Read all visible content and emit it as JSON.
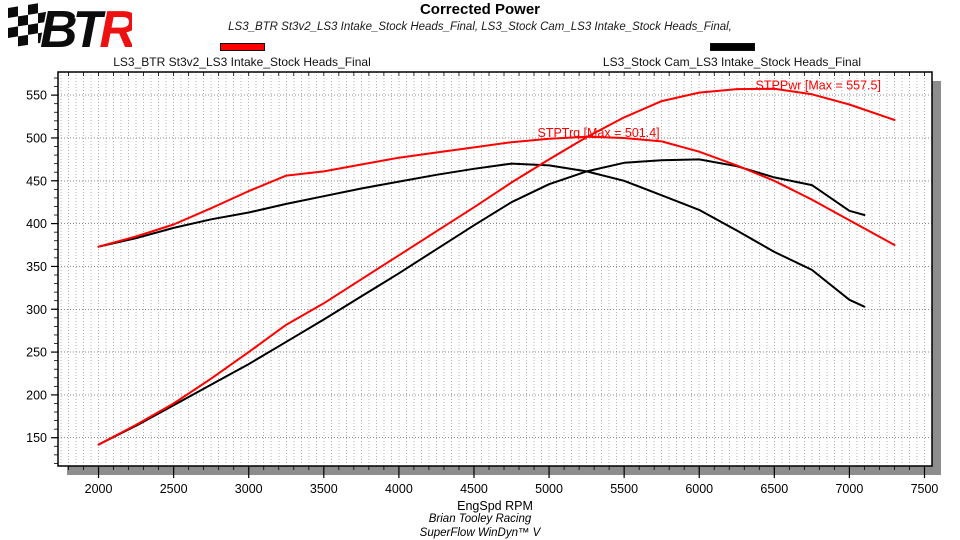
{
  "logo": {
    "letters": [
      "B",
      "T",
      "R"
    ],
    "accent_color": "#ee1111"
  },
  "header": {
    "title": "Corrected Power",
    "subtitle": "LS3_BTR St3v2_LS3 Intake_Stock Heads_Final, LS3_Stock Cam_LS3 Intake_Stock Heads_Final,"
  },
  "legend": [
    {
      "label": "LS3_BTR St3v2_LS3 Intake_Stock Heads_Final",
      "color": "#ff0000"
    },
    {
      "label": "LS3_Stock Cam_LS3 Intake_Stock Heads_Final",
      "color": "#000000"
    }
  ],
  "footer": {
    "xlabel": "EngSpd RPM",
    "line1": "Brian Tooley Racing",
    "line2": "SuperFlow WinDyn™ V"
  },
  "chart_data": {
    "type": "line",
    "title": "Corrected Power",
    "xlabel": "EngSpd RPM",
    "ylabel": "",
    "x_range": [
      1730,
      7550
    ],
    "y_range": [
      117,
      577
    ],
    "x_ticks": [
      2000,
      2500,
      3000,
      3500,
      4000,
      4500,
      5000,
      5500,
      6000,
      6500,
      7000,
      7500
    ],
    "y_ticks": [
      150,
      200,
      250,
      300,
      350,
      400,
      450,
      500,
      550
    ],
    "x_minor_step": 50,
    "y_minor_step": 10,
    "grid": true,
    "legend_position": "top",
    "series": [
      {
        "name": "STPTrq LS3_Stock Cam_LS3 Intake_Stock Heads_Final",
        "color": "#000000",
        "x": [
          2000,
          2250,
          2500,
          2750,
          3000,
          3250,
          3500,
          3750,
          4000,
          4250,
          4500,
          4750,
          5000,
          5250,
          5500,
          5750,
          6000,
          6250,
          6500,
          6750,
          7000,
          7100
        ],
        "values": [
          373,
          383,
          395,
          405,
          413,
          423,
          432,
          441,
          449,
          457,
          464,
          470,
          468,
          461,
          450,
          433,
          416,
          392,
          367,
          346,
          311,
          303
        ]
      },
      {
        "name": "STPPwr LS3_Stock Cam_LS3 Intake_Stock Heads_Final",
        "color": "#000000",
        "x": [
          2000,
          2250,
          2500,
          2750,
          3000,
          3250,
          3500,
          3750,
          4000,
          4250,
          4500,
          4750,
          5000,
          5250,
          5500,
          5750,
          6000,
          6250,
          6500,
          6750,
          7000,
          7100
        ],
        "values": [
          142,
          164,
          188,
          212,
          236,
          262,
          288,
          315,
          342,
          370,
          398,
          425,
          446,
          461,
          471,
          474,
          475,
          467,
          454,
          445,
          415,
          410
        ]
      },
      {
        "name": "STPTrq LS3_BTR St3v2_LS3 Intake_Stock Heads_Final",
        "color": "#ff0000",
        "x": [
          2000,
          2250,
          2500,
          2750,
          3000,
          3250,
          3500,
          3750,
          4000,
          4250,
          4500,
          4750,
          5000,
          5250,
          5500,
          5750,
          6000,
          6250,
          6500,
          6750,
          7000,
          7300
        ],
        "values": [
          373,
          385,
          399,
          418,
          438,
          456,
          461,
          469,
          477,
          483,
          489,
          495,
          499,
          501.4,
          500,
          496,
          484,
          468,
          450,
          428,
          404,
          375
        ]
      },
      {
        "name": "STPPwr LS3_BTR St3v2_LS3 Intake_Stock Heads_Final",
        "color": "#ff0000",
        "x": [
          2000,
          2250,
          2500,
          2750,
          3000,
          3250,
          3500,
          3750,
          4000,
          4250,
          4500,
          4750,
          5000,
          5250,
          5500,
          5750,
          6000,
          6250,
          6500,
          6750,
          7000,
          7300
        ],
        "values": [
          142,
          165,
          190,
          219,
          250,
          282,
          307,
          335,
          363,
          391,
          419,
          448,
          475,
          501,
          524,
          543,
          553,
          557,
          557.5,
          551,
          539,
          521
        ]
      }
    ],
    "annotations": [
      {
        "text": "STPTrq [Max = 501.4]",
        "x": 4923,
        "y": 506,
        "color": "#ff0000"
      },
      {
        "text": "STPPwr [Max = 557.5]",
        "x": 6375,
        "y": 561,
        "color": "#ff0000"
      }
    ]
  }
}
